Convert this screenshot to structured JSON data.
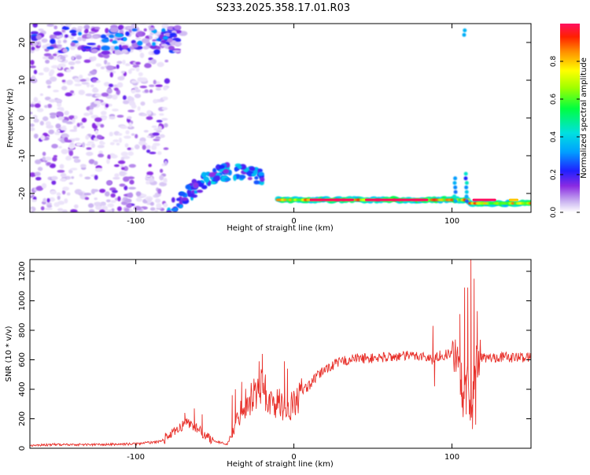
{
  "page_title": "S233.2025.358.17.01.R03",
  "colors": {
    "snr_line": "#e8302a",
    "colormap": [
      "#ffffff",
      "#d6c8f0",
      "#a070e0",
      "#7a22e0",
      "#4a12f0",
      "#1030ff",
      "#00b0ff",
      "#00e0d0",
      "#00ff60",
      "#a0ff00",
      "#ffff00",
      "#ffa000",
      "#ff3000",
      "#ff1060"
    ]
  },
  "chart_data": [
    {
      "type": "heatmap",
      "title": "",
      "xlabel": "Height of straight line (km)",
      "ylabel": "Frequency (Hz)",
      "xlim": [
        -167,
        150
      ],
      "ylim": [
        -25,
        25
      ],
      "xticks": [
        -100,
        0,
        100
      ],
      "yticks": [
        20,
        10,
        0,
        -10,
        -20
      ],
      "xtick_labels": [
        "-100",
        "0",
        "100"
      ],
      "ytick_labels": [
        "20",
        "10",
        "0",
        "-10",
        "-20"
      ],
      "colorbar": {
        "label": "Normalized spectral amplitude",
        "range": [
          0,
          1
        ],
        "ticks": [
          0.0,
          0.2,
          0.4,
          0.6,
          0.8
        ],
        "tick_labels": [
          "0.0",
          "0.2",
          "0.4",
          "0.6",
          "0.8"
        ]
      },
      "features": [
        {
          "name": "carrier-signal",
          "x_range": [
            -10,
            150
          ],
          "freq_hz": -22,
          "peak_amplitude": 0.9
        },
        {
          "name": "rising-arc",
          "x_range": [
            -80,
            -20
          ],
          "freq_hz_range": [
            -25,
            -13
          ],
          "peak_amplitude": 0.3
        },
        {
          "name": "noise-band-upper",
          "x_range": [
            -167,
            -70
          ],
          "freq_hz": 20,
          "peak_amplitude": 0.3
        },
        {
          "name": "noise-field",
          "x_range": [
            -167,
            -80
          ],
          "freq_hz_range": [
            -25,
            25
          ],
          "peak_amplitude": 0.15
        }
      ]
    },
    {
      "type": "line",
      "title": "",
      "xlabel": "Height of straight line (km)",
      "ylabel": "SNR (10 * v/v)",
      "xlim": [
        -167,
        150
      ],
      "ylim": [
        0,
        1280
      ],
      "xticks": [
        -100,
        0,
        100
      ],
      "yticks": [
        0,
        200,
        400,
        600,
        800,
        1000,
        1200
      ],
      "xtick_labels": [
        "-100",
        "0",
        "100"
      ],
      "ytick_labels": [
        "0",
        "200",
        "400",
        "600",
        "800",
        "1000",
        "1200"
      ],
      "series": [
        {
          "name": "SNR",
          "x": [
            -167,
            -150,
            -120,
            -100,
            -85,
            -75,
            -68,
            -62,
            -55,
            -48,
            -42,
            -38,
            -34,
            -30,
            -25,
            -20,
            -15,
            -10,
            -5,
            0,
            5,
            10,
            15,
            20,
            30,
            40,
            50,
            60,
            70,
            80,
            88,
            92,
            100,
            104,
            107,
            110,
            112,
            115,
            118,
            122,
            130,
            140,
            150
          ],
          "values": [
            20,
            25,
            25,
            30,
            45,
            110,
            180,
            140,
            80,
            40,
            30,
            120,
            250,
            320,
            370,
            420,
            300,
            310,
            270,
            300,
            380,
            430,
            490,
            540,
            590,
            610,
            610,
            620,
            625,
            630,
            600,
            630,
            640,
            600,
            300,
            500,
            250,
            580,
            620,
            610,
            620,
            615,
            620
          ],
          "spikes": [
            {
              "x": -69,
              "y": 240
            },
            {
              "x": -63,
              "y": 270
            },
            {
              "x": -58,
              "y": 230
            },
            {
              "x": -39,
              "y": 360
            },
            {
              "x": -37,
              "y": 400
            },
            {
              "x": -33,
              "y": 450
            },
            {
              "x": -22,
              "y": 590
            },
            {
              "x": -20,
              "y": 640
            },
            {
              "x": -18,
              "y": 500
            },
            {
              "x": -6,
              "y": 590
            },
            {
              "x": -4,
              "y": 540
            },
            {
              "x": -2,
              "y": 190
            },
            {
              "x": 88,
              "y": 830
            },
            {
              "x": 89,
              "y": 420
            },
            {
              "x": 105,
              "y": 910
            },
            {
              "x": 106,
              "y": 580
            },
            {
              "x": 108,
              "y": 1090
            },
            {
              "x": 109,
              "y": 230
            },
            {
              "x": 110,
              "y": 1090
            },
            {
              "x": 111,
              "y": 230
            },
            {
              "x": 112,
              "y": 1280
            },
            {
              "x": 113,
              "y": 130
            },
            {
              "x": 114,
              "y": 1150
            },
            {
              "x": 115,
              "y": 160
            },
            {
              "x": 116,
              "y": 930
            }
          ]
        }
      ]
    }
  ]
}
